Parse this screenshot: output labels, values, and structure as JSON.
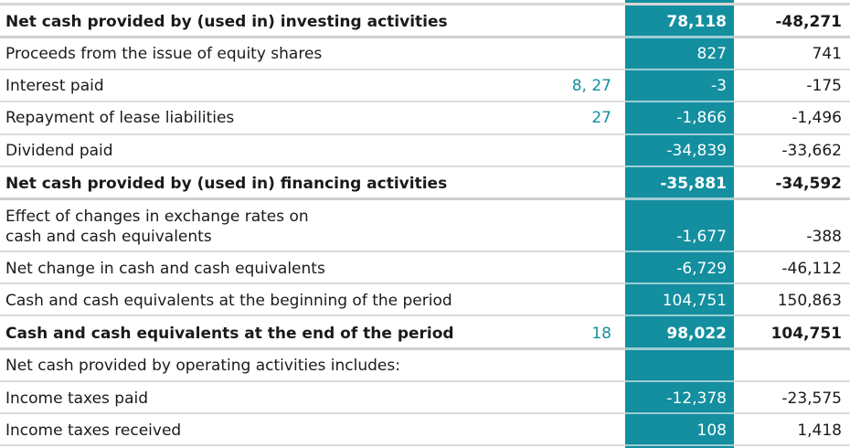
{
  "rows": [
    {
      "label": "Net cash provided by (used in) investing activities",
      "note": "",
      "current": "78,118",
      "previous": "-48,271",
      "bold": true
    },
    {
      "label": "Proceeds from the issue of equity shares",
      "note": "",
      "current": "827",
      "previous": "741",
      "bold": false
    },
    {
      "label": "Interest paid",
      "note": "8, 27",
      "current": "-3",
      "previous": "-175",
      "bold": false
    },
    {
      "label": "Repayment of lease liabilities",
      "note": "27",
      "current": "-1,866",
      "previous": "-1,496",
      "bold": false
    },
    {
      "label": "Dividend paid",
      "note": "",
      "current": "-34,839",
      "previous": "-33,662",
      "bold": false
    },
    {
      "label": "Net cash provided by (used in) financing activities",
      "note": "",
      "current": "-35,881",
      "previous": "-34,592",
      "bold": true
    },
    {
      "label_line1": "Effect of changes in exchange rates on",
      "label_line2": "cash and cash equivalents",
      "note": "",
      "current": "-1,677",
      "previous": "-388",
      "bold": false
    },
    {
      "label": "Net change in cash and cash equivalents",
      "note": "",
      "current": "-6,729",
      "previous": "-46,112",
      "bold": false
    },
    {
      "label": "Cash and cash equivalents at the beginning of the period",
      "note": "",
      "current": "104,751",
      "previous": "150,863",
      "bold": false
    },
    {
      "label": "Cash and cash equivalents at the end of the period",
      "note": "18",
      "current": "98,022",
      "previous": "104,751",
      "bold": true
    },
    {
      "label": "Net cash provided by operating activities includes:",
      "note": "",
      "current": "",
      "previous": "",
      "bold": false
    },
    {
      "label": "Income taxes paid",
      "note": "",
      "current": "-12,378",
      "previous": "-23,575",
      "bold": false
    },
    {
      "label": "Income taxes received",
      "note": "",
      "current": "108",
      "previous": "1,418",
      "bold": false
    }
  ],
  "colors": {
    "highlight_column": "#138fa0",
    "note_text": "#138fa0"
  }
}
